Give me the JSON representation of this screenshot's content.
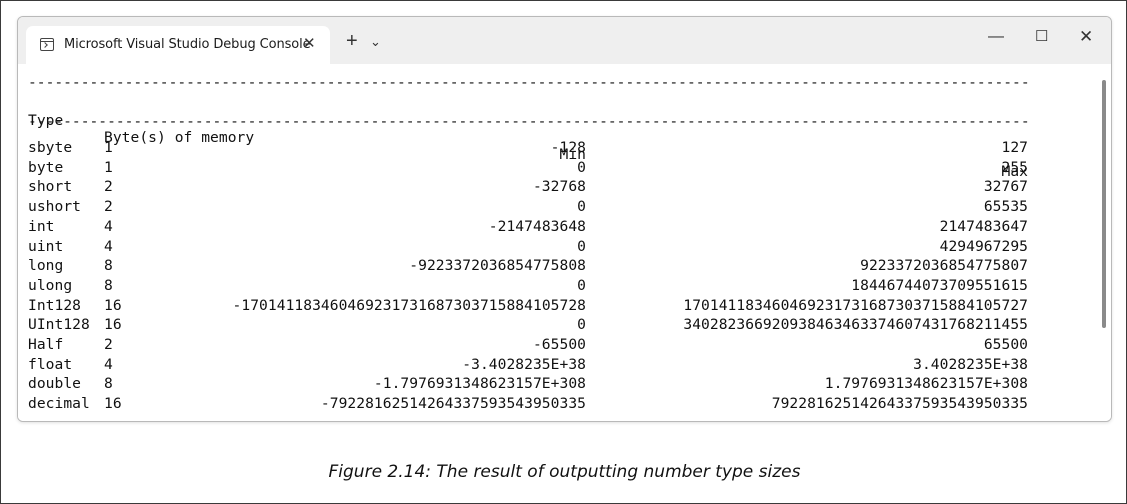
{
  "window": {
    "tab_title": "Microsoft Visual Studio Debug Console",
    "tab_close_glyph": "✕",
    "new_tab_glyph": "+",
    "dropdown_glyph": "⌄",
    "minimize_glyph": "—",
    "maximize_glyph": "☐",
    "close_glyph": "✕"
  },
  "console": {
    "separator": "--------------------------------------------------------------------------------------------------------------------------------",
    "headers": {
      "type": "Type",
      "bytes": "Byte(s) of memory",
      "min": "Min",
      "max": "Max"
    },
    "rows": [
      {
        "type": "sbyte",
        "bytes": "1",
        "min": "-128",
        "max": "127"
      },
      {
        "type": "byte",
        "bytes": "1",
        "min": "0",
        "max": "255"
      },
      {
        "type": "short",
        "bytes": "2",
        "min": "-32768",
        "max": "32767"
      },
      {
        "type": "ushort",
        "bytes": "2",
        "min": "0",
        "max": "65535"
      },
      {
        "type": "int",
        "bytes": "4",
        "min": "-2147483648",
        "max": "2147483647"
      },
      {
        "type": "uint",
        "bytes": "4",
        "min": "0",
        "max": "4294967295"
      },
      {
        "type": "long",
        "bytes": "8",
        "min": "-9223372036854775808",
        "max": "9223372036854775807"
      },
      {
        "type": "ulong",
        "bytes": "8",
        "min": "0",
        "max": "18446744073709551615"
      },
      {
        "type": "Int128",
        "bytes": "16",
        "min": "-170141183460469231731687303715884105728",
        "max": "170141183460469231731687303715884105727"
      },
      {
        "type": "UInt128",
        "bytes": "16",
        "min": "0",
        "max": "340282366920938463463374607431768211455"
      },
      {
        "type": "Half",
        "bytes": "2",
        "min": "-65500",
        "max": "65500"
      },
      {
        "type": "float",
        "bytes": "4",
        "min": "-3.4028235E+38",
        "max": "3.4028235E+38"
      },
      {
        "type": "double",
        "bytes": "8",
        "min": "-1.7976931348623157E+308",
        "max": "1.7976931348623157E+308"
      },
      {
        "type": "decimal",
        "bytes": "16",
        "min": "-79228162514264337593543950335",
        "max": "79228162514264337593543950335"
      }
    ]
  },
  "caption": "Figure 2.14: The result of outputting number type sizes"
}
